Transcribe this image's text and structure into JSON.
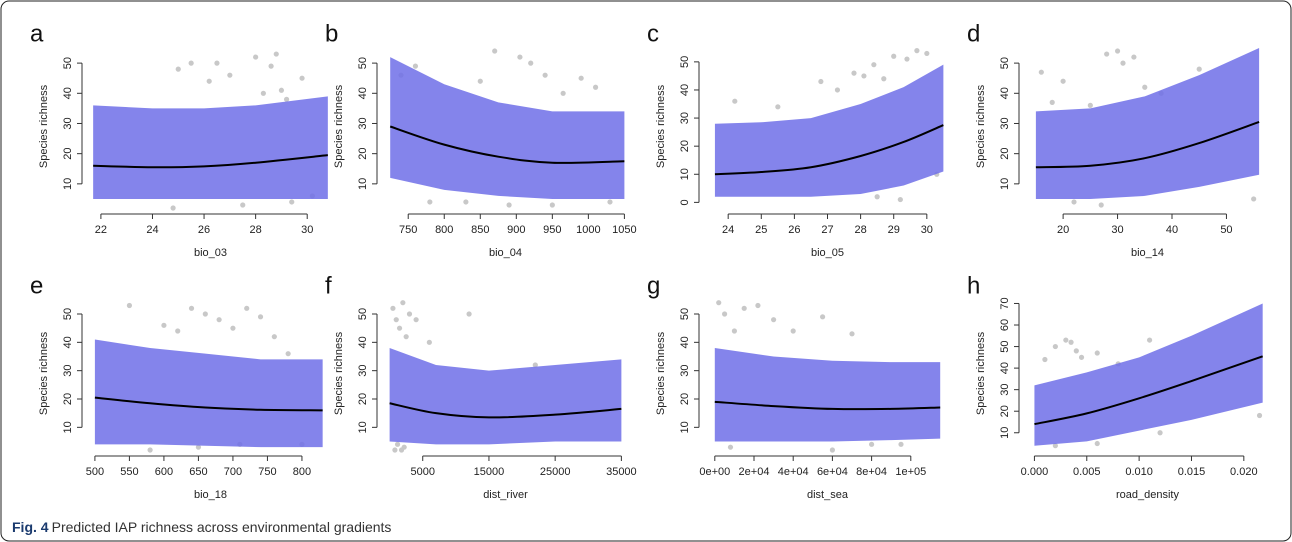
{
  "chart_data": [
    {
      "type": "band",
      "panel": "a",
      "xlabel": "bio_03",
      "ylabel": "Species richness",
      "xlim": [
        21.5,
        31
      ],
      "ylim": [
        2,
        56
      ],
      "xticks": [
        22,
        24,
        26,
        28,
        30
      ],
      "yticks": [
        10,
        20,
        30,
        40,
        50
      ],
      "x": [
        21.7,
        24,
        26,
        28,
        30.8
      ],
      "values": [
        16,
        15.5,
        15.8,
        17,
        19.5
      ],
      "lower": [
        5,
        5,
        5,
        5,
        5
      ],
      "upper": [
        36,
        35,
        35,
        36,
        39
      ],
      "points": {
        "x": [
          25,
          25.5,
          26.2,
          27,
          27.5,
          28,
          28.3,
          28.8,
          29,
          29.4,
          29.8,
          30.2,
          24.8,
          26.5,
          28.6,
          29.2
        ],
        "y": [
          48,
          50,
          44,
          46,
          3,
          52,
          40,
          53,
          41,
          4,
          45,
          6,
          2,
          50,
          49,
          38
        ]
      },
      "band_color": "#6f6fe8",
      "line_color": "#000000",
      "point_color": "#c8c8c8"
    },
    {
      "type": "band",
      "panel": "b",
      "xlabel": "bio_04",
      "ylabel": "Species richness",
      "xlim": [
        715,
        1055
      ],
      "ylim": [
        2,
        56
      ],
      "xticks": [
        750,
        800,
        850,
        900,
        950,
        1000,
        1050
      ],
      "yticks": [
        10,
        20,
        30,
        40,
        50
      ],
      "x": [
        725,
        800,
        875,
        950,
        1050
      ],
      "values": [
        29,
        23,
        19,
        17,
        17.5
      ],
      "lower": [
        12,
        8,
        6,
        5,
        5
      ],
      "upper": [
        52,
        43,
        37,
        34,
        34
      ],
      "points": {
        "x": [
          740,
          780,
          830,
          870,
          890,
          905,
          920,
          940,
          965,
          990,
          1010,
          1030,
          760,
          850,
          950
        ],
        "y": [
          46,
          4,
          4,
          54,
          3,
          52,
          50,
          46,
          40,
          45,
          42,
          4,
          49,
          44,
          3
        ]
      },
      "band_color": "#6f6fe8",
      "line_color": "#000000",
      "point_color": "#c8c8c8"
    },
    {
      "type": "band",
      "panel": "c",
      "xlabel": "bio_05",
      "ylabel": "Species richness",
      "xlim": [
        23.3,
        30.7
      ],
      "ylim": [
        -2,
        56
      ],
      "xticks": [
        24,
        25,
        26,
        27,
        28,
        29,
        30
      ],
      "yticks": [
        0,
        10,
        20,
        30,
        40,
        50
      ],
      "x": [
        23.6,
        25,
        26.5,
        28,
        29.3,
        30.5
      ],
      "values": [
        10,
        10.8,
        12.5,
        16.5,
        21.5,
        27.5
      ],
      "lower": [
        2,
        2,
        2,
        3,
        6,
        11
      ],
      "upper": [
        28,
        28.5,
        30,
        35,
        41,
        49
      ],
      "points": {
        "x": [
          24.2,
          25.5,
          26.8,
          27.3,
          27.8,
          28.1,
          28.4,
          28.7,
          29,
          29.4,
          29.7,
          30,
          28.5,
          29.2,
          30.3
        ],
        "y": [
          36,
          34,
          43,
          40,
          46,
          45,
          49,
          44,
          52,
          51,
          54,
          53,
          2,
          1,
          10
        ]
      },
      "band_color": "#6f6fe8",
      "line_color": "#000000",
      "point_color": "#c8c8c8"
    },
    {
      "type": "band",
      "panel": "d",
      "xlabel": "bio_14",
      "ylabel": "Species richness",
      "xlim": [
        13,
        58
      ],
      "ylim": [
        2,
        56
      ],
      "xticks": [
        20,
        30,
        40,
        50
      ],
      "yticks": [
        10,
        20,
        30,
        40,
        50
      ],
      "x": [
        15,
        25,
        35,
        45,
        56
      ],
      "values": [
        15.5,
        16,
        18.5,
        23.5,
        30.5
      ],
      "lower": [
        5,
        5,
        6,
        9,
        13
      ],
      "upper": [
        34,
        35,
        39,
        46,
        55
      ],
      "points": {
        "x": [
          16,
          18,
          20,
          25,
          28,
          30,
          31,
          33,
          35,
          38,
          45,
          55,
          22,
          27
        ],
        "y": [
          47,
          37,
          44,
          36,
          53,
          54,
          50,
          52,
          42,
          40,
          48,
          5,
          4,
          3
        ]
      },
      "band_color": "#6f6fe8",
      "line_color": "#000000",
      "point_color": "#c8c8c8"
    },
    {
      "type": "band",
      "panel": "e",
      "xlabel": "bio_18",
      "ylabel": "Species richness",
      "xlim": [
        490,
        845
      ],
      "ylim": [
        2,
        56
      ],
      "xticks": [
        500,
        550,
        600,
        650,
        700,
        750,
        800
      ],
      "yticks": [
        10,
        20,
        30,
        40,
        50
      ],
      "x": [
        500,
        580,
        660,
        740,
        830
      ],
      "values": [
        20.5,
        18.5,
        17,
        16.2,
        16
      ],
      "lower": [
        4,
        4,
        3.5,
        3,
        3
      ],
      "upper": [
        41,
        38,
        36,
        34,
        34
      ],
      "points": {
        "x": [
          550,
          600,
          620,
          640,
          660,
          680,
          700,
          720,
          740,
          760,
          780,
          800,
          580,
          650,
          710
        ],
        "y": [
          53,
          46,
          44,
          52,
          50,
          48,
          45,
          52,
          49,
          42,
          36,
          4,
          2,
          3,
          4
        ]
      },
      "band_color": "#6f6fe8",
      "line_color": "#000000",
      "point_color": "#c8c8c8"
    },
    {
      "type": "band",
      "panel": "f",
      "xlabel": "dist_river",
      "ylabel": "Species richness",
      "xlim": [
        -1000,
        36000
      ],
      "ylim": [
        2,
        56
      ],
      "xticks": [
        5000,
        15000,
        25000,
        35000
      ],
      "yticks": [
        10,
        20,
        30,
        40,
        50
      ],
      "x": [
        0,
        7000,
        15000,
        25000,
        35000
      ],
      "values": [
        18.5,
        15,
        13.5,
        14.5,
        16.5
      ],
      "lower": [
        5,
        4,
        4,
        5,
        5
      ],
      "upper": [
        38,
        32,
        30,
        32,
        34
      ],
      "points": {
        "x": [
          500,
          1000,
          1500,
          2000,
          2500,
          3000,
          1200,
          1800,
          4000,
          6000,
          12000,
          22000,
          800,
          2200
        ],
        "y": [
          52,
          48,
          45,
          54,
          42,
          50,
          4,
          2,
          48,
          40,
          50,
          32,
          2,
          3
        ]
      },
      "band_color": "#6f6fe8",
      "line_color": "#000000",
      "point_color": "#c8c8c8"
    },
    {
      "type": "band",
      "panel": "g",
      "xlabel": "dist_sea",
      "ylabel": "Species richness",
      "xlim": [
        -5000,
        120000
      ],
      "ylim": [
        2,
        56
      ],
      "xticks": [
        {
          "value": 0,
          "label": "0e+00"
        },
        {
          "value": 20000,
          "label": "2e+04"
        },
        {
          "value": 40000,
          "label": "4e+04"
        },
        {
          "value": 60000,
          "label": "6e+04"
        },
        {
          "value": 80000,
          "label": "8e+04"
        },
        {
          "value": 100000,
          "label": "1e+05"
        }
      ],
      "yticks": [
        10,
        20,
        30,
        40,
        50
      ],
      "x": [
        0,
        30000,
        60000,
        90000,
        115000
      ],
      "values": [
        19,
        17.5,
        16.5,
        16.5,
        17
      ],
      "lower": [
        5,
        5,
        5,
        5.5,
        6
      ],
      "upper": [
        38,
        35,
        33.5,
        33,
        33
      ],
      "points": {
        "x": [
          2000,
          5000,
          10000,
          15000,
          22000,
          30000,
          40000,
          55000,
          70000,
          80000,
          95000,
          8000,
          60000
        ],
        "y": [
          54,
          50,
          44,
          52,
          53,
          48,
          44,
          49,
          43,
          4,
          4,
          3,
          2
        ]
      },
      "band_color": "#6f6fe8",
      "line_color": "#000000",
      "point_color": "#c8c8c8"
    },
    {
      "type": "band",
      "panel": "h",
      "xlabel": "road_density",
      "ylabel": "Species richness",
      "xlim": [
        -0.0009,
        0.0225
      ],
      "ylim": [
        2,
        73
      ],
      "xticks": [
        {
          "value": 0,
          "label": "0.000"
        },
        {
          "value": 0.005,
          "label": "0.005"
        },
        {
          "value": 0.01,
          "label": "0.010"
        },
        {
          "value": 0.015,
          "label": "0.015"
        },
        {
          "value": 0.02,
          "label": "0.020"
        }
      ],
      "yticks": [
        10,
        20,
        30,
        40,
        50,
        60,
        70
      ],
      "x": [
        0,
        0.005,
        0.01,
        0.015,
        0.0218
      ],
      "values": [
        14,
        19,
        26,
        34,
        45.5
      ],
      "lower": [
        4,
        6,
        11,
        16,
        24
      ],
      "upper": [
        32,
        38,
        45,
        55,
        70
      ],
      "points": {
        "x": [
          0.001,
          0.002,
          0.003,
          0.004,
          0.0035,
          0.0045,
          0.006,
          0.008,
          0.011,
          0.0215,
          0.002,
          0.006,
          0.012
        ],
        "y": [
          44,
          50,
          53,
          48,
          52,
          45,
          47,
          42,
          53,
          18,
          4,
          5,
          10
        ]
      },
      "band_color": "#6f6fe8",
      "line_color": "#000000",
      "point_color": "#c8c8c8"
    }
  ],
  "caption": {
    "label": "Fig. 4",
    "text": "Predicted IAP richness across environmental gradients"
  }
}
